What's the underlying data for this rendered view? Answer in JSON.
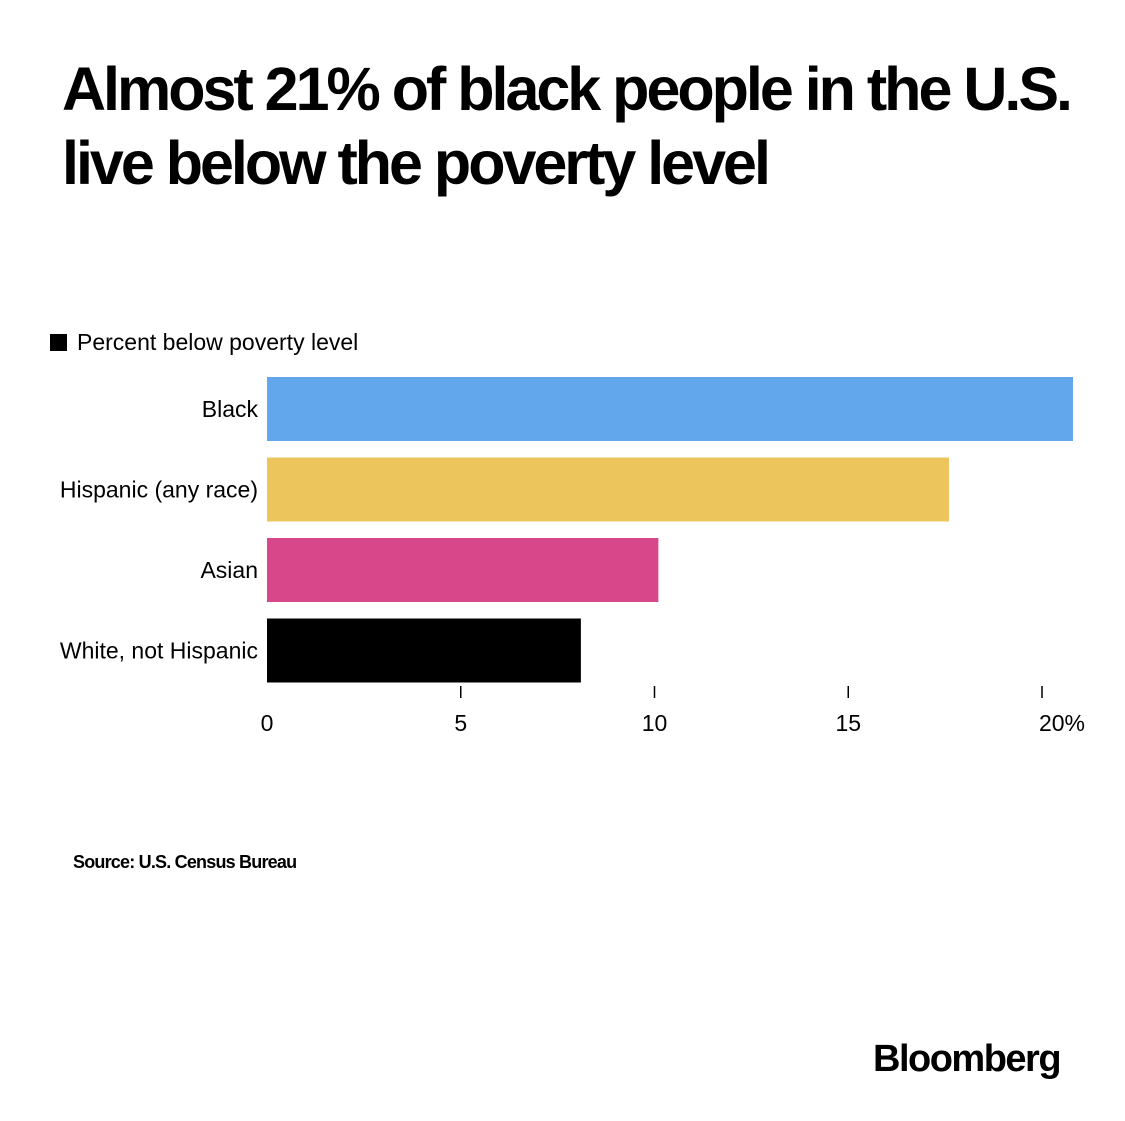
{
  "chart_data": {
    "type": "bar",
    "orientation": "horizontal",
    "title": "Almost 21% of black people in the U.S. live below the poverty level",
    "legend": {
      "label": "Percent below poverty level",
      "color": "#000000",
      "placement": "top-left"
    },
    "categories": [
      "Black",
      "Hispanic (any race)",
      "Asian",
      "White, not Hispanic"
    ],
    "values": [
      20.8,
      17.6,
      10.1,
      8.1
    ],
    "colors": [
      "#62a7ec",
      "#ecc55c",
      "#d8478a",
      "#000000"
    ],
    "xlim": [
      0,
      20.8
    ],
    "xticks": [
      0,
      5,
      10,
      15,
      20
    ],
    "xtick_labels": [
      "0",
      "5",
      "10",
      "15",
      "20%"
    ],
    "grid": false,
    "source": "Source: U.S. Census Bureau"
  },
  "brand": "Bloomberg"
}
